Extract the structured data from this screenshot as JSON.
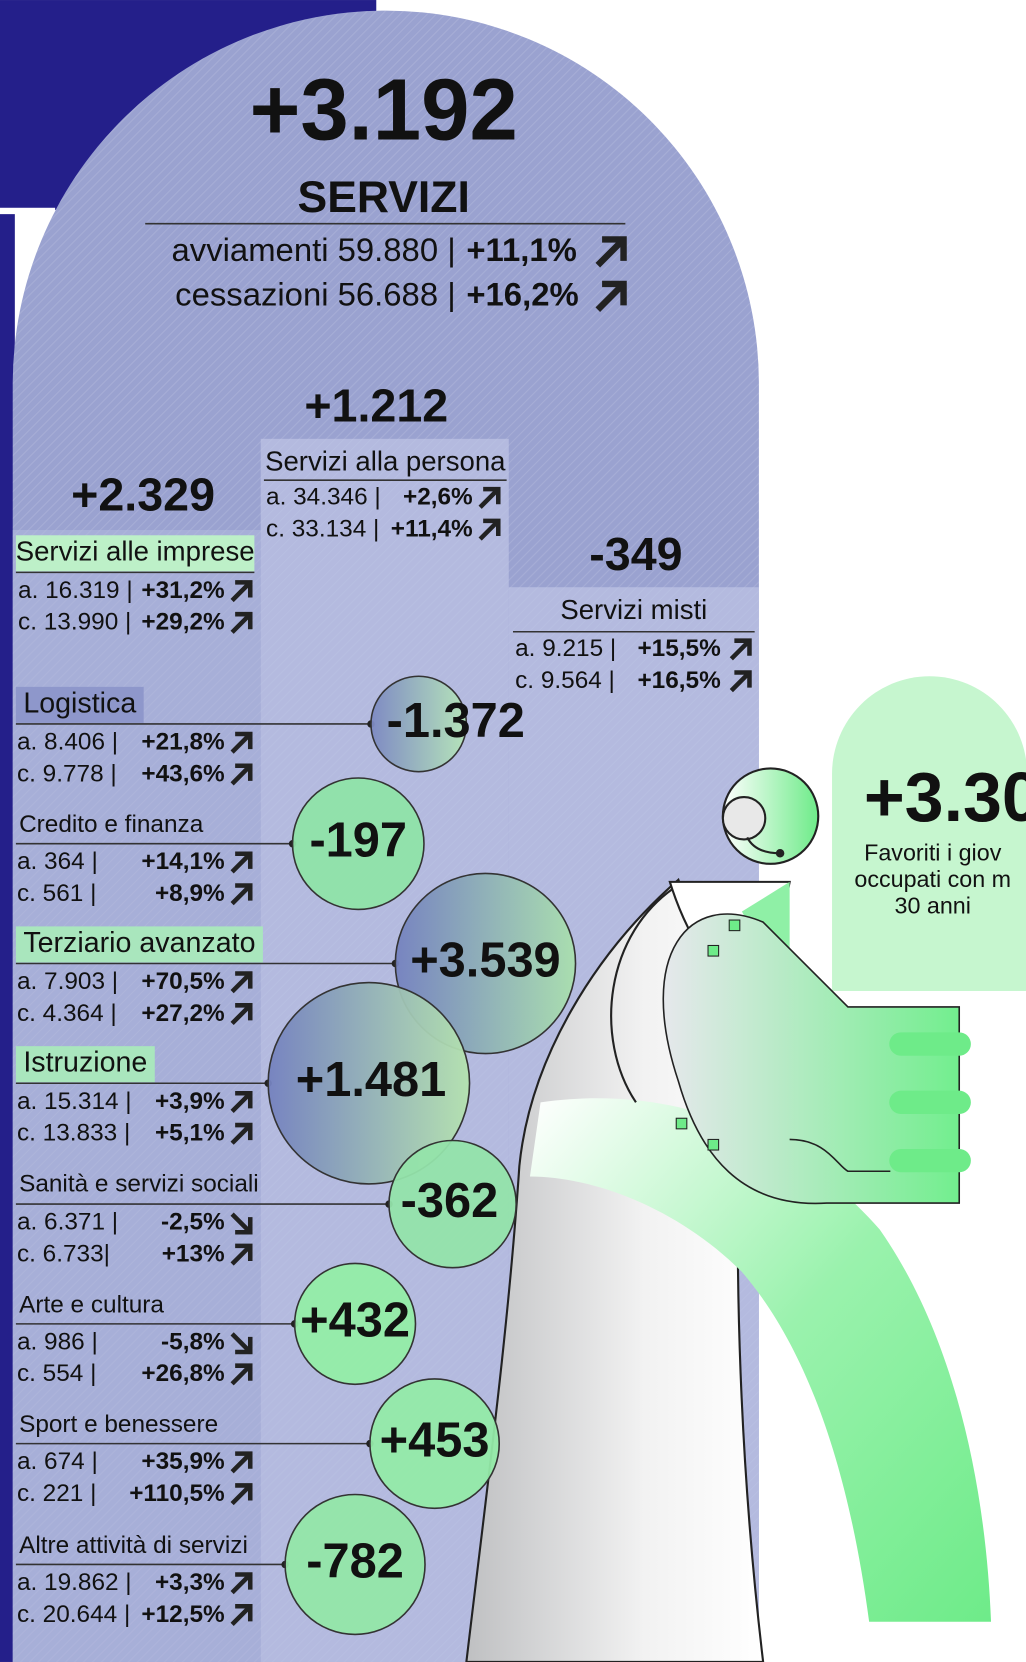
{
  "header": {
    "value": "+3.192",
    "title": "SERVIZI",
    "lines": [
      {
        "label": "avviamenti 59.880 |",
        "change": "+11,1%",
        "arrow": "up"
      },
      {
        "label": "cessazioni 56.688 |",
        "change": "+16,2%",
        "arrow": "up"
      }
    ]
  },
  "sectors": [
    {
      "value": "+2.329",
      "name": "Servizi alle imprese",
      "highlight": "#bdf0c8",
      "lines": [
        {
          "label": "a. 16.319 |",
          "change": "+31,2%",
          "arrow": "up"
        },
        {
          "label": "c. 13.990 |",
          "change": "+29,2%",
          "arrow": "up"
        }
      ]
    },
    {
      "value": "+1.212",
      "name": "Servizi alla persona",
      "lines": [
        {
          "label": "a. 34.346 |",
          "change": "+2,6%",
          "arrow": "up"
        },
        {
          "label": "c. 33.134 |",
          "change": "+11,4%",
          "arrow": "up"
        }
      ]
    },
    {
      "value": "-349",
      "name": "Servizi misti",
      "lines": [
        {
          "label": "a.  9.215 |",
          "change": "+15,5%",
          "arrow": "up"
        },
        {
          "label": "c.  9.564 |",
          "change": "+16,5%",
          "arrow": "up"
        }
      ]
    }
  ],
  "subsectors": [
    {
      "name": "Logistica",
      "value": "-1.372",
      "highlight": "#8e97cb",
      "color": [
        "#7c88c2",
        "#b5e6b8"
      ],
      "lines": [
        {
          "label": "a.  8.406 |",
          "change": "+21,8%",
          "arrow": "up"
        },
        {
          "label": "c.  9.778 |",
          "change": "+43,6%",
          "arrow": "up"
        }
      ]
    },
    {
      "name": "Credito e finanza",
      "value": "-197",
      "color": "#8fe3a8",
      "lines": [
        {
          "label": "a.      364 |",
          "change": "+14,1%",
          "arrow": "up"
        },
        {
          "label": "c.      561 |",
          "change": "+8,9%",
          "arrow": "up"
        }
      ]
    },
    {
      "name": "Terziario avanzato",
      "value": "+3.539",
      "highlight": "#a9e6bd",
      "color": [
        "#7481bf",
        "#a9e0ad"
      ],
      "lines": [
        {
          "label": "a.  7.903 |",
          "change": "+70,5%",
          "arrow": "up"
        },
        {
          "label": "c.  4.364 |",
          "change": "+27,2%",
          "arrow": "up"
        }
      ]
    },
    {
      "name": "Istruzione",
      "value": "+1.481",
      "highlight": "#a9e6bd",
      "color": [
        "#7481bf",
        "#b4e3ae"
      ],
      "lines": [
        {
          "label": "a. 15.314 |",
          "change": "+3,9%",
          "arrow": "up"
        },
        {
          "label": "c. 13.833 |",
          "change": "+5,1%",
          "arrow": "up"
        }
      ]
    },
    {
      "name": "Sanità e servizi sociali",
      "value": "-362",
      "color": "#93e3aa",
      "lines": [
        {
          "label": "a.  6.371 |",
          "change": "-2,5%",
          "arrow": "down"
        },
        {
          "label": "c.  6.733|",
          "change": "+13%",
          "arrow": "up"
        }
      ]
    },
    {
      "name": "Arte e cultura",
      "value": "+432",
      "color": "#93eda6",
      "lines": [
        {
          "label": "a.      986 |",
          "change": "-5,8%",
          "arrow": "down"
        },
        {
          "label": "c.      554 |",
          "change": "+26,8%",
          "arrow": "up"
        }
      ]
    },
    {
      "name": "Sport e benessere",
      "value": "+453",
      "color": "#93eaa8",
      "lines": [
        {
          "label": "a.      674 |",
          "change": "+35,9%",
          "arrow": "up"
        },
        {
          "label": "c.      221 |",
          "change": "+110,5%",
          "arrow": "up"
        }
      ]
    },
    {
      "name": "Altre attività di servizi",
      "value": "-782",
      "color": "#93e6a8",
      "lines": [
        {
          "label": "a. 19.862 |",
          "change": "+3,3%",
          "arrow": "up"
        },
        {
          "label": "c. 20.644 |",
          "change": "+12,5%",
          "arrow": "up"
        }
      ]
    }
  ],
  "side": {
    "value": "+3.30",
    "lines": [
      "Favoriti i giov",
      "occupati con m",
      "30 anni"
    ]
  }
}
